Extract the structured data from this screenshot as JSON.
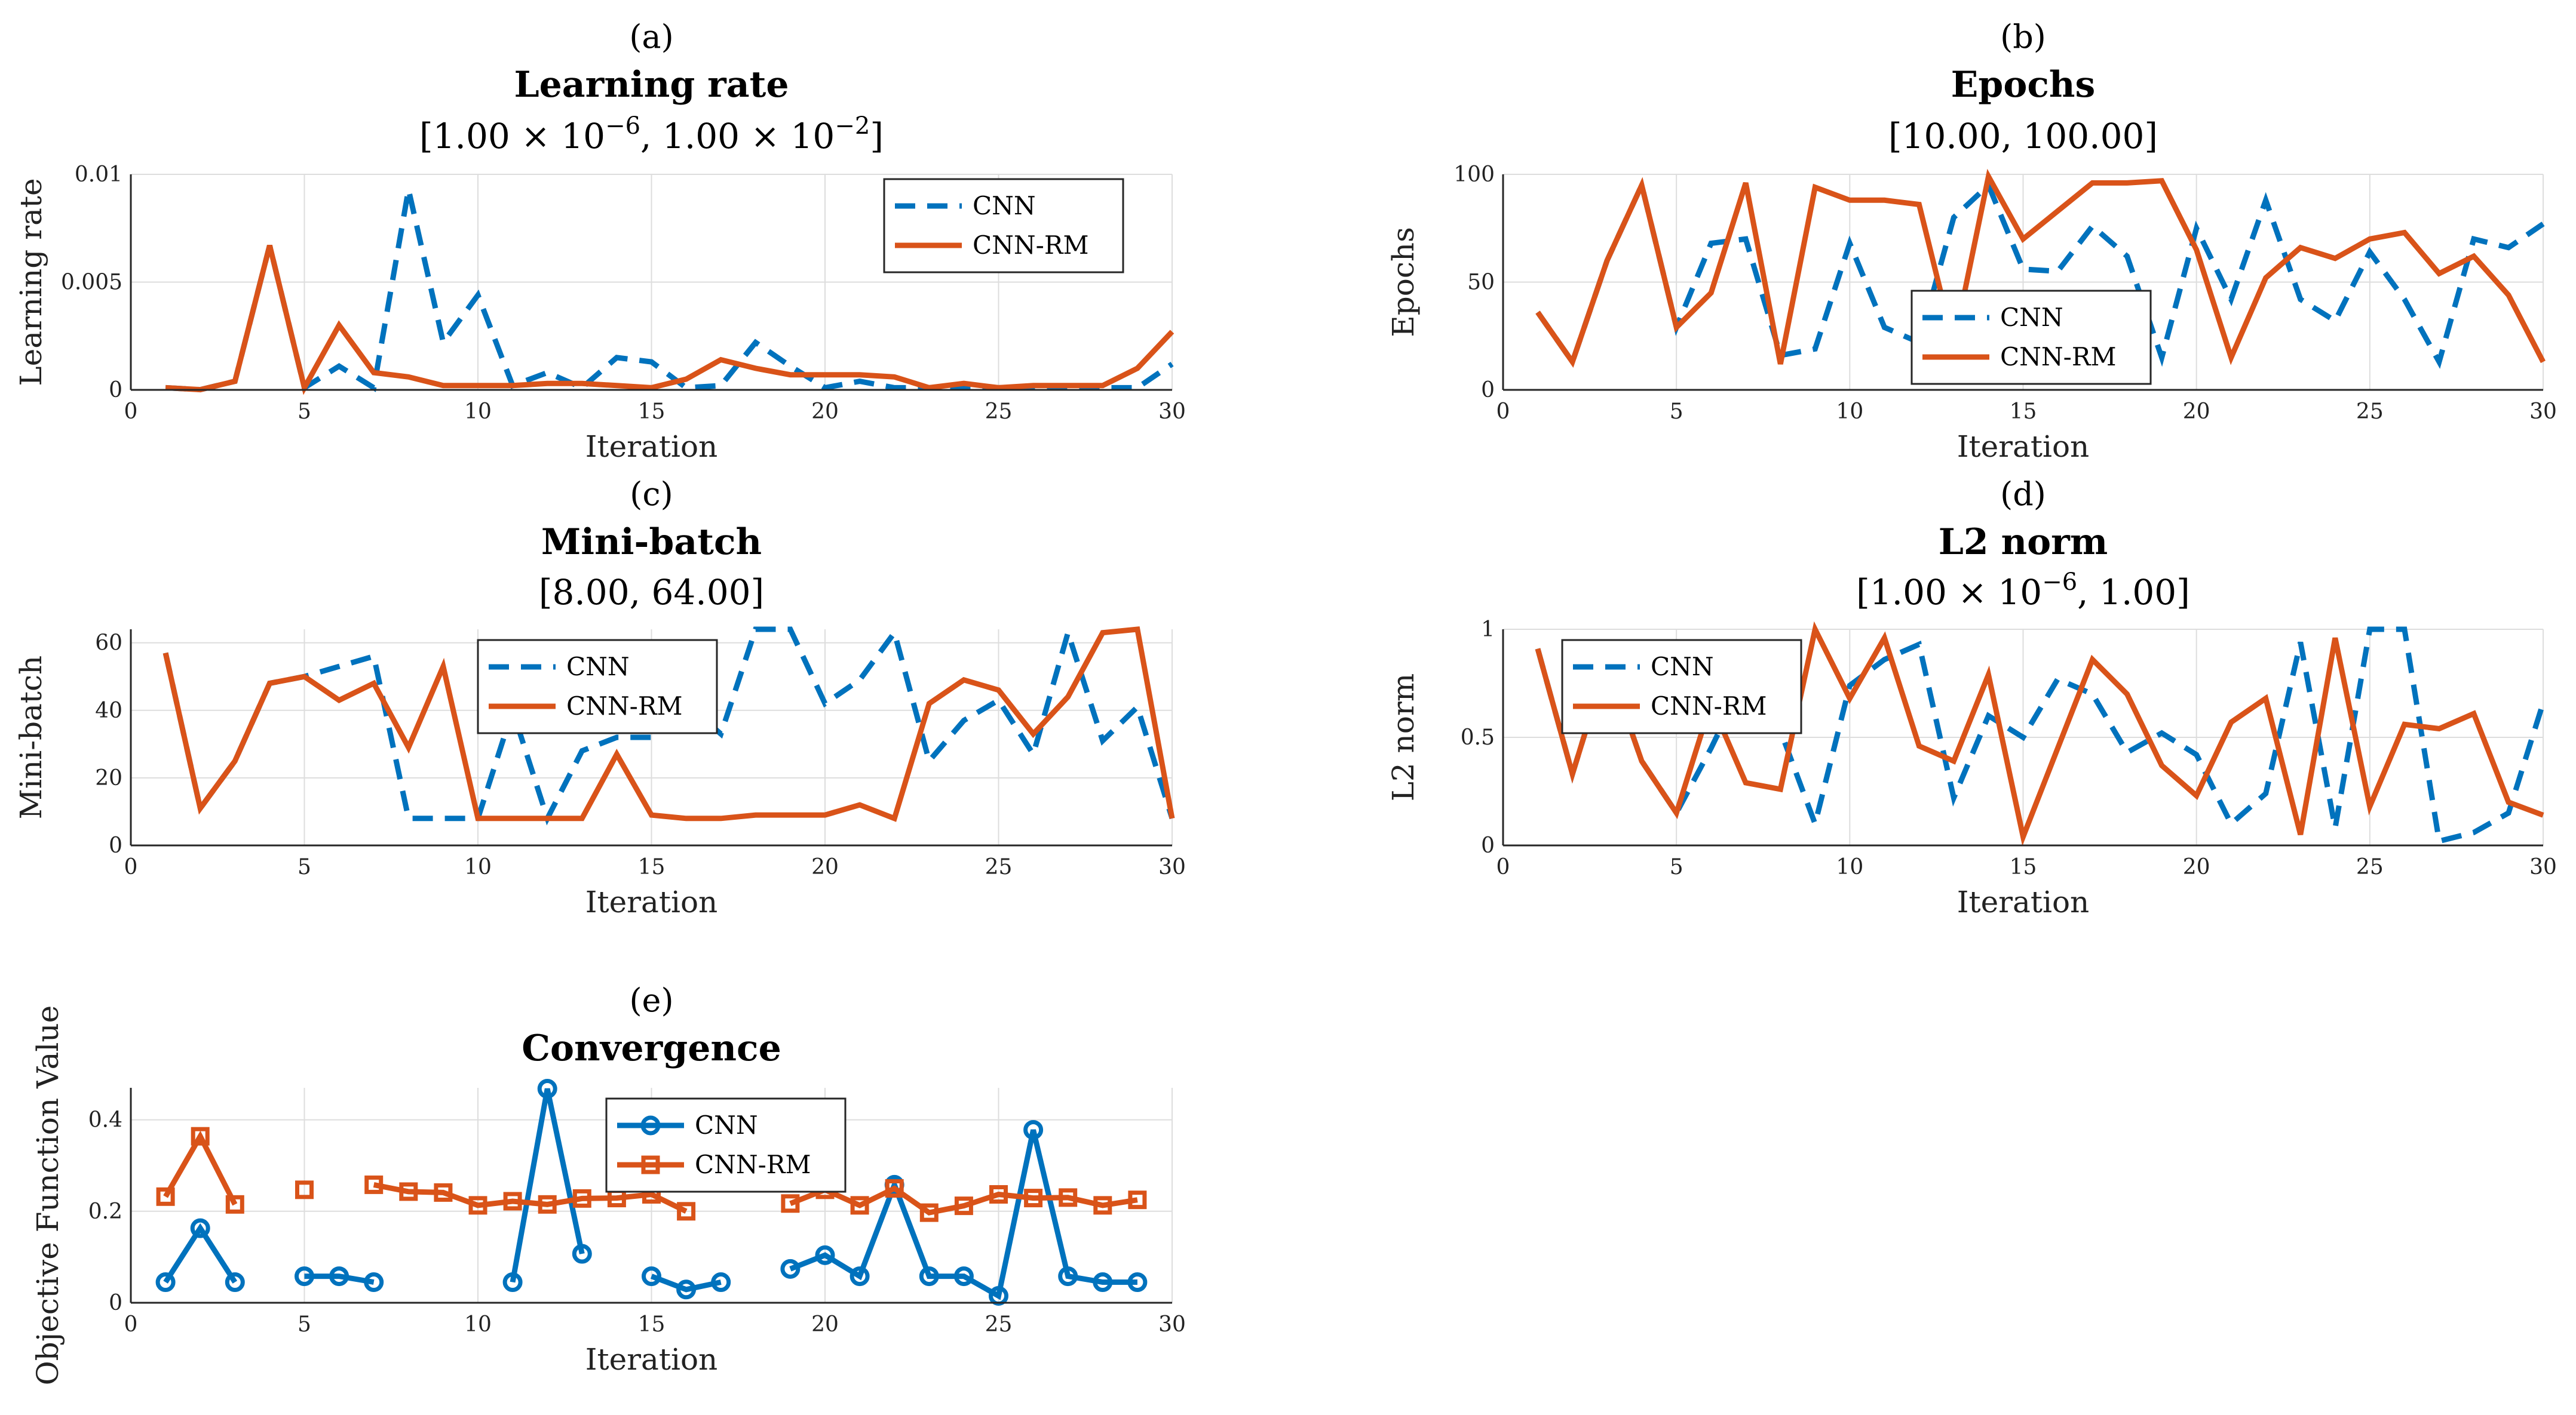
{
  "colors": {
    "cnn": "#0072BD",
    "cnn_rm": "#D95319",
    "grid": "#dddddd",
    "axis": "#262626"
  },
  "chart_data": [
    {
      "type": "line",
      "panel_label": "(a)",
      "title": "Learning rate",
      "range_text": {
        "pre": "[1.00 × 10",
        "e1": "−6",
        "mid": ", 1.00 × 10",
        "e2": "−2",
        "post": "]"
      },
      "xlabel": "Iteration",
      "ylabel": "Learning rate",
      "xlim": [
        0,
        30
      ],
      "ylim": [
        0,
        0.01
      ],
      "xticks": [
        0,
        5,
        10,
        15,
        20,
        25,
        30
      ],
      "xtick_labels": [
        "0",
        "5",
        "10",
        "15",
        "20",
        "25",
        "30"
      ],
      "yticks": [
        0,
        0.005,
        0.01
      ],
      "ytick_labels": [
        "0",
        "0.005",
        "0.01"
      ],
      "grid": true,
      "legend_position": "top-right",
      "x": [
        1,
        2,
        3,
        4,
        5,
        6,
        7,
        8,
        9,
        10,
        11,
        12,
        13,
        14,
        15,
        16,
        17,
        18,
        19,
        20,
        21,
        22,
        23,
        24,
        25,
        26,
        27,
        28,
        29,
        30
      ],
      "series": [
        {
          "name": "CNN",
          "style": "dashed",
          "values": [
            0.0001,
            1e-05,
            0.0004,
            0.0067,
            0.0001,
            0.0011,
            0.0001,
            0.0093,
            0.0022,
            0.0044,
            0.0002,
            0.0008,
            0.0001,
            0.0015,
            0.0013,
            0.0001,
            0.0002,
            0.0022,
            0.0011,
            0.0001,
            0.0004,
            0.0001,
            0.0001,
            0.0001,
            0.0001,
            0.0001,
            0.0001,
            0.0001,
            0.0001,
            0.0012
          ]
        },
        {
          "name": "CNN-RM",
          "style": "solid",
          "values": [
            0.0001,
            1e-05,
            0.0004,
            0.0067,
            0.0001,
            0.003,
            0.0008,
            0.0006,
            0.0002,
            0.0002,
            0.0002,
            0.0003,
            0.0003,
            0.0002,
            0.0001,
            0.0005,
            0.0014,
            0.001,
            0.0007,
            0.0007,
            0.0007,
            0.0006,
            0.0001,
            0.0003,
            0.0001,
            0.0002,
            0.0002,
            0.0002,
            0.001,
            0.0027
          ]
        }
      ]
    },
    {
      "type": "line",
      "panel_label": "(b)",
      "title": "Epochs",
      "range_text": {
        "pre": "[10.00, 100.00]"
      },
      "xlabel": "Iteration",
      "ylabel": "Epochs",
      "xlim": [
        0,
        30
      ],
      "ylim": [
        0,
        100
      ],
      "xticks": [
        0,
        5,
        10,
        15,
        20,
        25,
        30
      ],
      "xtick_labels": [
        "0",
        "5",
        "10",
        "15",
        "20",
        "25",
        "30"
      ],
      "yticks": [
        0,
        50,
        100
      ],
      "ytick_labels": [
        "0",
        "50",
        "100"
      ],
      "grid": true,
      "legend_position": "center",
      "x": [
        1,
        2,
        3,
        4,
        5,
        6,
        7,
        8,
        9,
        10,
        11,
        12,
        13,
        14,
        15,
        16,
        17,
        18,
        19,
        20,
        21,
        22,
        23,
        24,
        25,
        26,
        27,
        28,
        29,
        30
      ],
      "series": [
        {
          "name": "CNN",
          "style": "dashed",
          "values": [
            36,
            13,
            60,
            95,
            29,
            68,
            70,
            16,
            19,
            68,
            29,
            22,
            80,
            95,
            56,
            55,
            76,
            62,
            15,
            75,
            42,
            88,
            42,
            32,
            64,
            42,
            13,
            70,
            66,
            77
          ]
        },
        {
          "name": "CNN-RM",
          "style": "solid",
          "values": [
            36,
            13,
            60,
            95,
            29,
            45,
            96,
            12,
            94,
            88,
            88,
            86,
            21,
            99,
            70,
            83,
            96,
            96,
            97,
            65,
            15,
            52,
            66,
            61,
            70,
            73,
            54,
            62,
            44,
            13
          ]
        }
      ]
    },
    {
      "type": "line",
      "panel_label": "(c)",
      "title": "Mini-batch",
      "range_text": {
        "pre": "[8.00, 64.00]"
      },
      "xlabel": "Iteration",
      "ylabel": "Mini-batch",
      "xlim": [
        0,
        30
      ],
      "ylim": [
        0,
        64
      ],
      "xticks": [
        0,
        5,
        10,
        15,
        20,
        25,
        30
      ],
      "xtick_labels": [
        "0",
        "5",
        "10",
        "15",
        "20",
        "25",
        "30"
      ],
      "yticks": [
        0,
        20,
        40,
        60
      ],
      "ytick_labels": [
        "0",
        "20",
        "40",
        "60"
      ],
      "grid": true,
      "legend_position": "top-center",
      "x": [
        1,
        2,
        3,
        4,
        5,
        6,
        7,
        8,
        9,
        10,
        11,
        12,
        13,
        14,
        15,
        16,
        17,
        18,
        19,
        20,
        21,
        22,
        23,
        24,
        25,
        26,
        27,
        28,
        29,
        30
      ],
      "series": [
        {
          "name": "CNN",
          "style": "dashed",
          "values": [
            57,
            11,
            25,
            48,
            50,
            53,
            56,
            8,
            8,
            8,
            40,
            8,
            28,
            32,
            32,
            42,
            33,
            64,
            64,
            42,
            49,
            63,
            25,
            37,
            43,
            27,
            63,
            31,
            41,
            8
          ]
        },
        {
          "name": "CNN-RM",
          "style": "solid",
          "values": [
            57,
            11,
            25,
            48,
            50,
            43,
            48,
            29,
            53,
            8,
            8,
            8,
            8,
            27,
            9,
            8,
            8,
            9,
            9,
            9,
            12,
            8,
            42,
            49,
            46,
            33,
            44,
            63,
            64,
            8
          ]
        }
      ]
    },
    {
      "type": "line",
      "panel_label": "(d)",
      "title": "L2 norm",
      "range_text": {
        "pre": "[1.00 × 10",
        "e1": "−6",
        "mid": ", 1.00]",
        "e2": "",
        "post": ""
      },
      "xlabel": "Iteration",
      "ylabel": "L2 norm",
      "xlim": [
        0,
        30
      ],
      "ylim": [
        0,
        1
      ],
      "xticks": [
        0,
        5,
        10,
        15,
        20,
        25,
        30
      ],
      "xtick_labels": [
        "0",
        "5",
        "10",
        "15",
        "20",
        "25",
        "30"
      ],
      "yticks": [
        0,
        0.5,
        1
      ],
      "ytick_labels": [
        "0",
        "0.5",
        "1"
      ],
      "grid": true,
      "legend_position": "top-left",
      "x": [
        1,
        2,
        3,
        4,
        5,
        6,
        7,
        8,
        9,
        10,
        11,
        12,
        13,
        14,
        15,
        16,
        17,
        18,
        19,
        20,
        21,
        22,
        23,
        24,
        25,
        26,
        27,
        28,
        29,
        30
      ],
      "series": [
        {
          "name": "CNN",
          "style": "dashed",
          "values": [
            0.91,
            0.33,
            0.85,
            0.39,
            0.15,
            0.45,
            0.78,
            0.53,
            0.1,
            0.74,
            0.86,
            0.93,
            0.22,
            0.6,
            0.5,
            0.77,
            0.7,
            0.43,
            0.52,
            0.42,
            0.1,
            0.24,
            0.94,
            0.08,
            1.0,
            1.0,
            0.02,
            0.06,
            0.15,
            0.66
          ]
        },
        {
          "name": "CNN-RM",
          "style": "solid",
          "values": [
            0.91,
            0.33,
            0.85,
            0.39,
            0.15,
            0.66,
            0.29,
            0.26,
            1.0,
            0.68,
            0.96,
            0.46,
            0.39,
            0.79,
            0.04,
            0.45,
            0.86,
            0.7,
            0.37,
            0.23,
            0.57,
            0.68,
            0.05,
            0.96,
            0.18,
            0.56,
            0.54,
            0.61,
            0.2,
            0.14
          ]
        }
      ]
    },
    {
      "type": "line",
      "panel_label": "(e)",
      "title": "Convergence",
      "xlabel": "Iteration",
      "ylabel": "Objective Function Value",
      "xlim": [
        0,
        30
      ],
      "ylim": [
        0,
        0.47
      ],
      "xticks": [
        0,
        5,
        10,
        15,
        20,
        25,
        30
      ],
      "xtick_labels": [
        "0",
        "5",
        "10",
        "15",
        "20",
        "25",
        "30"
      ],
      "yticks": [
        0,
        0.2,
        0.4
      ],
      "ytick_labels": [
        "0",
        "0.2",
        "0.4"
      ],
      "grid": true,
      "legend_position": "top-center",
      "x": [
        1,
        2,
        3,
        4,
        5,
        6,
        7,
        8,
        9,
        10,
        11,
        12,
        13,
        14,
        15,
        16,
        17,
        18,
        19,
        20,
        21,
        22,
        23,
        24,
        25,
        26,
        27,
        28,
        29
      ],
      "series": [
        {
          "name": "CNN",
          "style": "solid",
          "marker": "circle",
          "values": [
            0.045,
            0.163,
            0.045,
            null,
            0.058,
            0.058,
            0.045,
            null,
            null,
            null,
            0.045,
            0.468,
            0.107,
            null,
            0.058,
            0.029,
            0.045,
            null,
            0.074,
            0.104,
            0.058,
            0.258,
            0.058,
            0.058,
            0.015,
            0.378,
            0.058,
            0.045,
            0.045
          ]
        },
        {
          "name": "CNN-RM",
          "style": "solid",
          "marker": "square",
          "values": [
            0.232,
            0.364,
            0.215,
            null,
            0.247,
            null,
            0.258,
            0.243,
            0.241,
            0.213,
            0.222,
            0.215,
            0.228,
            0.229,
            0.237,
            0.2,
            null,
            null,
            0.217,
            0.247,
            0.213,
            0.25,
            0.197,
            0.212,
            0.237,
            0.229,
            0.23,
            0.213,
            0.225
          ]
        }
      ]
    }
  ]
}
